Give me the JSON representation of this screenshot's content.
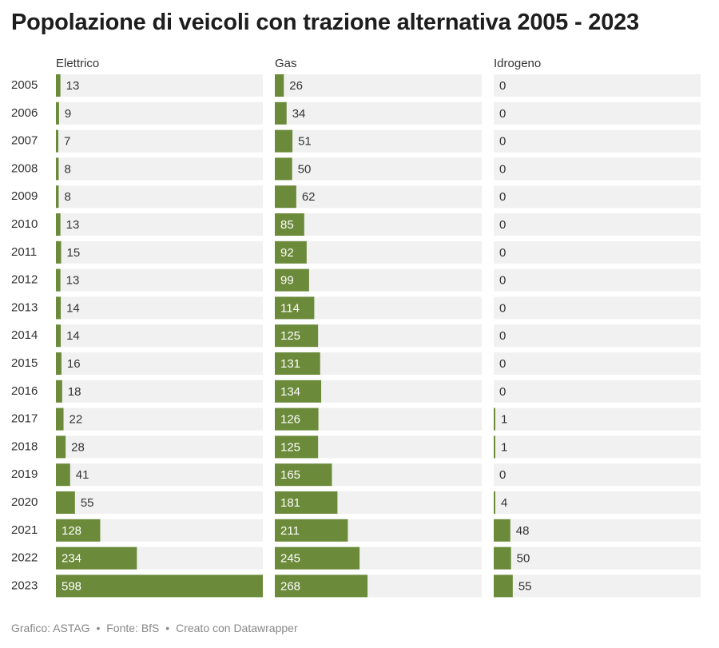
{
  "title": "Popolazione di veicoli con trazione alternativa 2005 - 2023",
  "footer": {
    "credit": "Grafico: ASTAG",
    "source": "Fonte: BfS",
    "tool": "Creato con Datawrapper",
    "separator": "•"
  },
  "colors": {
    "bar": "#6b8a3a",
    "track": "#f1f1f1",
    "label_inside": "#ffffff",
    "label_outside": "#333333"
  },
  "chart_data": {
    "type": "bar",
    "orientation": "horizontal",
    "layout": "small-multiples",
    "categories": [
      "2005",
      "2006",
      "2007",
      "2008",
      "2009",
      "2010",
      "2011",
      "2012",
      "2013",
      "2014",
      "2015",
      "2016",
      "2017",
      "2018",
      "2019",
      "2020",
      "2021",
      "2022",
      "2023"
    ],
    "series": [
      {
        "name": "Elettrico",
        "values": [
          13,
          9,
          7,
          8,
          8,
          13,
          15,
          13,
          14,
          14,
          16,
          18,
          22,
          28,
          41,
          55,
          128,
          234,
          598
        ]
      },
      {
        "name": "Gas",
        "values": [
          26,
          34,
          51,
          50,
          62,
          85,
          92,
          99,
          114,
          125,
          131,
          134,
          126,
          125,
          165,
          181,
          211,
          245,
          268
        ]
      },
      {
        "name": "Idrogeno",
        "values": [
          0,
          0,
          0,
          0,
          0,
          0,
          0,
          0,
          0,
          0,
          0,
          0,
          1,
          1,
          0,
          4,
          48,
          50,
          55
        ]
      }
    ],
    "xlim": [
      0,
      598
    ],
    "grid": false,
    "legend": "none"
  }
}
